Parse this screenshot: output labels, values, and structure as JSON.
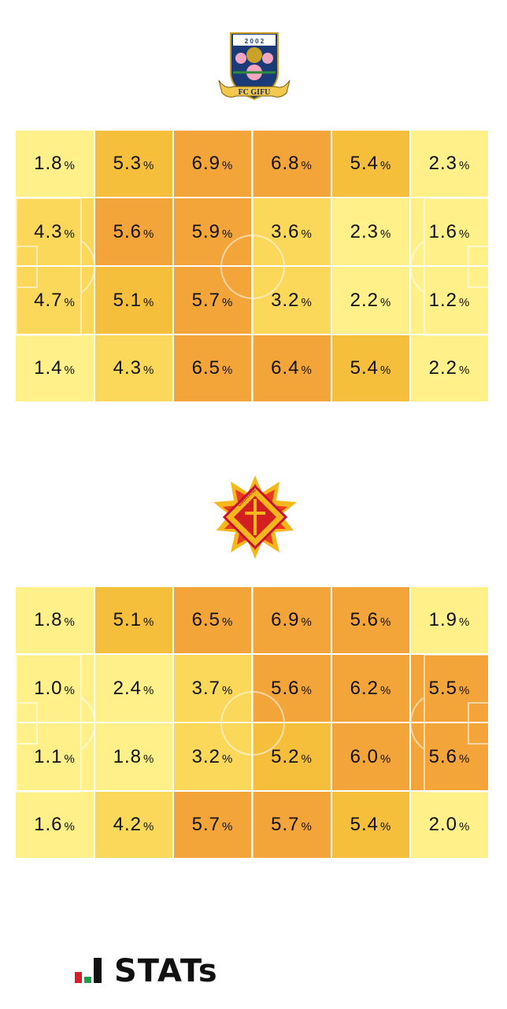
{
  "teams": [
    {
      "logo": "fc-gifu-crest",
      "crest_text": "FC GIFU",
      "crest_year": "2 0 0 2"
    },
    {
      "logo": "giravanz-kitakyushu-crest",
      "crest_text": "GIRAVANZ KITAKYUSHU"
    }
  ],
  "palette": [
    "#fff08a",
    "#fbd85a",
    "#f5bf3b",
    "#f4a53a"
  ],
  "chart_data": [
    {
      "type": "heatmap",
      "team": "FC GIFU",
      "rows": 4,
      "cols": 6,
      "unit": "%",
      "values": [
        [
          1.8,
          5.3,
          6.9,
          6.8,
          5.4,
          2.3
        ],
        [
          4.3,
          5.6,
          5.9,
          3.6,
          2.3,
          1.6
        ],
        [
          4.7,
          5.1,
          5.7,
          3.2,
          2.2,
          1.2
        ],
        [
          1.4,
          4.3,
          6.5,
          6.4,
          5.4,
          2.2
        ]
      ],
      "labels": [
        [
          "1.8",
          "5.3",
          "6.9",
          "6.8",
          "5.4",
          "2.3"
        ],
        [
          "4.3",
          "5.6",
          "5.9",
          "3.6",
          "2.3",
          "1.6"
        ],
        [
          "4.7",
          "5.1",
          "5.7",
          "3.2",
          "2.2",
          "1.2"
        ],
        [
          "1.4",
          "4.3",
          "6.5",
          "6.4",
          "5.4",
          "2.2"
        ]
      ]
    },
    {
      "type": "heatmap",
      "team": "GIRAVANZ KITAKYUSHU",
      "rows": 4,
      "cols": 6,
      "unit": "%",
      "values": [
        [
          1.8,
          5.1,
          6.5,
          6.9,
          5.6,
          1.9
        ],
        [
          1.0,
          2.4,
          3.7,
          5.6,
          6.2,
          5.5
        ],
        [
          1.1,
          1.8,
          3.2,
          5.2,
          6.0,
          5.6
        ],
        [
          1.6,
          4.2,
          5.7,
          5.7,
          5.4,
          2.0
        ]
      ],
      "labels": [
        [
          "1.8",
          "5.1",
          "6.5",
          "6.9",
          "5.6",
          "1.9"
        ],
        [
          "1.0",
          "2.4",
          "3.7",
          "5.6",
          "6.2",
          "5.5"
        ],
        [
          "1.1",
          "1.8",
          "3.2",
          "5.2",
          "6.0",
          "5.6"
        ],
        [
          "1.6",
          "4.2",
          "5.7",
          "5.7",
          "5.4",
          "2.0"
        ]
      ]
    }
  ],
  "brand": {
    "name": "STATs"
  }
}
